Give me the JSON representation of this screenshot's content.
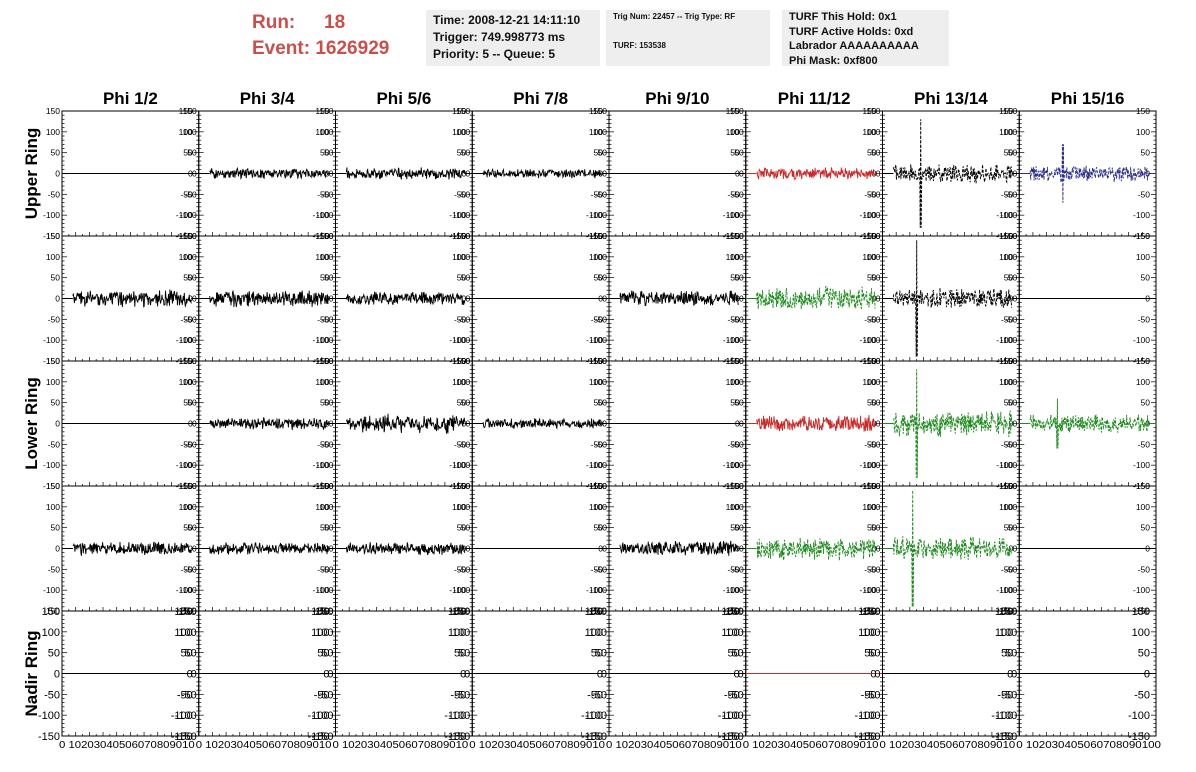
{
  "header": {
    "run_label": "Run:",
    "run_value": "18",
    "event_label": "Event:",
    "event_value": "1626929",
    "time": "Time: 2008-12-21 14:11:10",
    "trigger": "Trigger: 749.998773 ms",
    "priority": "Priority: 5 -- Queue: 5",
    "trig_num": "Trig Num: 22457 -- Trig Type: RF",
    "turf": "TURF: 153538",
    "turf_this_hold": "TURF This Hold: 0x1",
    "turf_active_holds": "TURF Active Holds: 0xd",
    "labrador": "Labrador AAAAAAAAAA",
    "phi_mask": "Phi Mask: 0xf800"
  },
  "colors": {
    "black": "#000000",
    "red": "#cc2a2a",
    "green": "#1e8a1e",
    "blue": "#2a2a8c",
    "header_red": "#c9504a",
    "box_bg": "#eeeeee"
  },
  "chart_data": {
    "type": "line",
    "columns": [
      "Phi 1/2",
      "Phi 3/4",
      "Phi 5/6",
      "Phi 7/8",
      "Phi 9/10",
      "Phi 11/12",
      "Phi 13/14",
      "Phi 15/16"
    ],
    "rows": [
      "Upper Ring",
      "",
      "Lower Ring",
      "",
      "Nadir Ring"
    ],
    "ylim": [
      -150,
      150
    ],
    "yticks": [
      -150,
      -100,
      -50,
      0,
      50,
      100,
      150
    ],
    "xlim": [
      0,
      100
    ],
    "xticks": [
      "0",
      "10",
      "20",
      "30",
      "40",
      "50",
      "60",
      "70",
      "80",
      "90",
      "100"
    ],
    "bottom_axis_label": "0 10203040506070809010",
    "bottom_axis_label_last": "0 102030405060708090100",
    "panels": [
      [
        {
          "c": "black",
          "a": 0
        },
        {
          "c": "black",
          "a": 13
        },
        {
          "c": "black",
          "a": 14
        },
        {
          "c": "black",
          "a": 11
        },
        {
          "c": "black",
          "a": 0
        },
        {
          "c": "red",
          "a": 15
        },
        {
          "c": "black",
          "a": 24,
          "d": true,
          "s": [
            28,
            130
          ]
        },
        {
          "c": "blue",
          "a": 21,
          "d": true,
          "s": [
            32,
            70
          ]
        }
      ],
      [
        {
          "c": "black",
          "a": 20
        },
        {
          "c": "black",
          "a": 20
        },
        {
          "c": "black",
          "a": 16
        },
        {
          "c": "black",
          "a": 0
        },
        {
          "c": "black",
          "a": 19
        },
        {
          "c": "green",
          "a": 28,
          "d": true
        },
        {
          "c": "black",
          "a": 24,
          "d": true,
          "s": [
            25,
            140
          ]
        },
        {
          "c": "black",
          "a": 0
        }
      ],
      [
        {
          "c": "black",
          "a": 0
        },
        {
          "c": "black",
          "a": 15
        },
        {
          "c": "black",
          "a": 22
        },
        {
          "c": "black",
          "a": 12
        },
        {
          "c": "black",
          "a": 0
        },
        {
          "c": "red",
          "a": 20
        },
        {
          "c": "green",
          "a": 30,
          "d": true,
          "s": [
            25,
            130
          ]
        },
        {
          "c": "green",
          "a": 22,
          "d": true,
          "s": [
            28,
            60
          ]
        }
      ],
      [
        {
          "c": "black",
          "a": 17
        },
        {
          "c": "black",
          "a": 14
        },
        {
          "c": "black",
          "a": 16
        },
        {
          "c": "black",
          "a": 0
        },
        {
          "c": "black",
          "a": 18
        },
        {
          "c": "green",
          "a": 28,
          "d": true
        },
        {
          "c": "green",
          "a": 28,
          "d": true,
          "s": [
            22,
            140
          ]
        },
        {
          "c": "black",
          "a": 0
        }
      ],
      [
        {
          "c": "black",
          "a": 0
        },
        {
          "c": "black",
          "a": 0
        },
        {
          "c": "black",
          "a": 0
        },
        {
          "c": "black",
          "a": 0
        },
        {
          "c": "black",
          "a": 0
        },
        {
          "c": "red",
          "a": 0
        },
        {
          "c": "black",
          "a": 0
        },
        {
          "c": "black",
          "a": 0
        }
      ]
    ]
  }
}
